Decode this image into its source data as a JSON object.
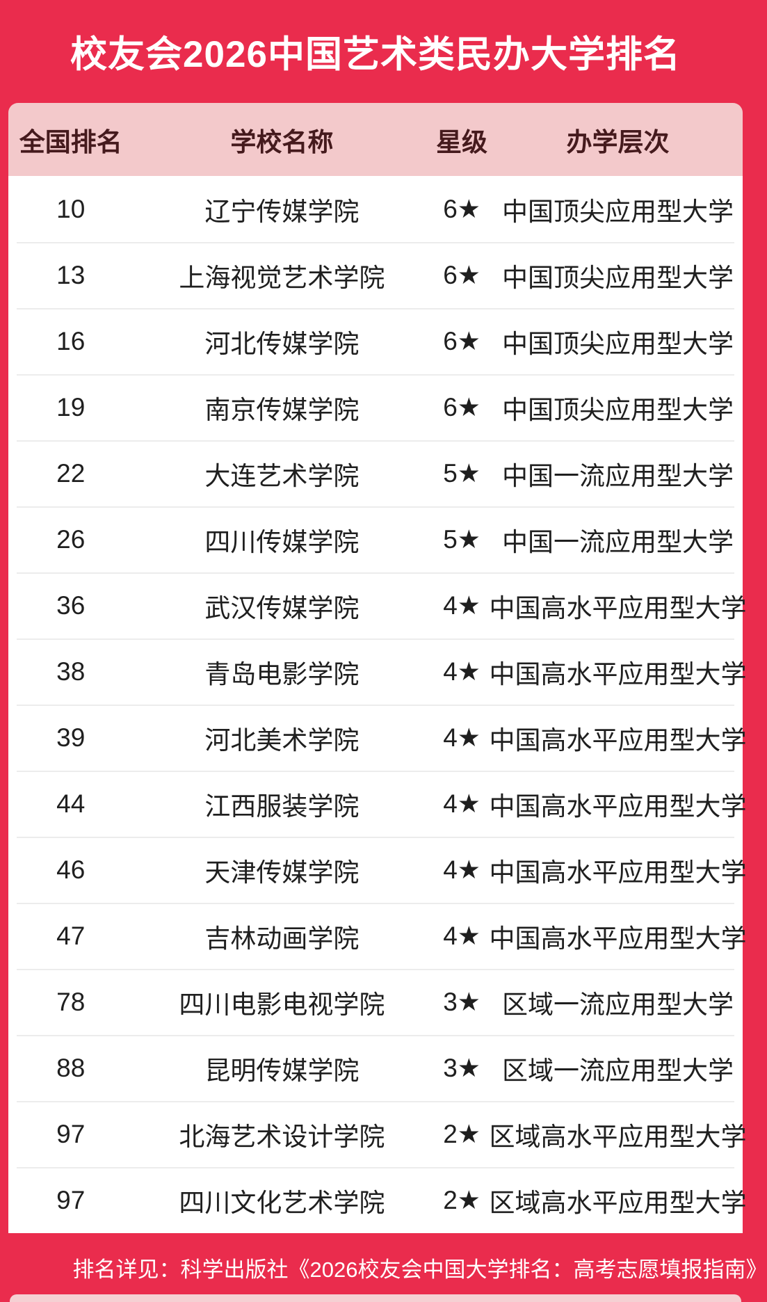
{
  "chart_data": {
    "type": "table",
    "title": "校友会2026中国艺术类民办大学排名",
    "columns": [
      "全国排名",
      "学校名称",
      "星级",
      "办学层次"
    ],
    "rows": [
      {
        "rank": "10",
        "school": "辽宁传媒学院",
        "star": "6★",
        "level": "中国顶尖应用型大学"
      },
      {
        "rank": "13",
        "school": "上海视觉艺术学院",
        "star": "6★",
        "level": "中国顶尖应用型大学"
      },
      {
        "rank": "16",
        "school": "河北传媒学院",
        "star": "6★",
        "level": "中国顶尖应用型大学"
      },
      {
        "rank": "19",
        "school": "南京传媒学院",
        "star": "6★",
        "level": "中国顶尖应用型大学"
      },
      {
        "rank": "22",
        "school": "大连艺术学院",
        "star": "5★",
        "level": "中国一流应用型大学"
      },
      {
        "rank": "26",
        "school": "四川传媒学院",
        "star": "5★",
        "level": "中国一流应用型大学"
      },
      {
        "rank": "36",
        "school": "武汉传媒学院",
        "star": "4★",
        "level": "中国高水平应用型大学"
      },
      {
        "rank": "38",
        "school": "青岛电影学院",
        "star": "4★",
        "level": "中国高水平应用型大学"
      },
      {
        "rank": "39",
        "school": "河北美术学院",
        "star": "4★",
        "level": "中国高水平应用型大学"
      },
      {
        "rank": "44",
        "school": "江西服装学院",
        "star": "4★",
        "level": "中国高水平应用型大学"
      },
      {
        "rank": "46",
        "school": "天津传媒学院",
        "star": "4★",
        "level": "中国高水平应用型大学"
      },
      {
        "rank": "47",
        "school": "吉林动画学院",
        "star": "4★",
        "level": "中国高水平应用型大学"
      },
      {
        "rank": "78",
        "school": "四川电影电视学院",
        "star": "3★",
        "level": "区域一流应用型大学"
      },
      {
        "rank": "88",
        "school": "昆明传媒学院",
        "star": "3★",
        "level": "区域一流应用型大学"
      },
      {
        "rank": "97",
        "school": "北海艺术设计学院",
        "star": "2★",
        "level": "区域高水平应用型大学"
      },
      {
        "rank": "97",
        "school": "四川文化艺术学院",
        "star": "2★",
        "level": "区域高水平应用型大学"
      }
    ],
    "footer_note": "排名详见：科学出版社《2026校友会中国大学排名：高考志愿填报指南》",
    "layout": {
      "legend": "none",
      "grid": "row-dividers"
    }
  },
  "colors": {
    "background_red": "#EA2C4D",
    "header_pink": "#F3C9CB",
    "header_text": "#451A1D",
    "row_text": "#1F1F1F",
    "divider": "#ECECEC",
    "footer_text": "#FFFFFF",
    "strip_pink": "#F5D0D3"
  }
}
